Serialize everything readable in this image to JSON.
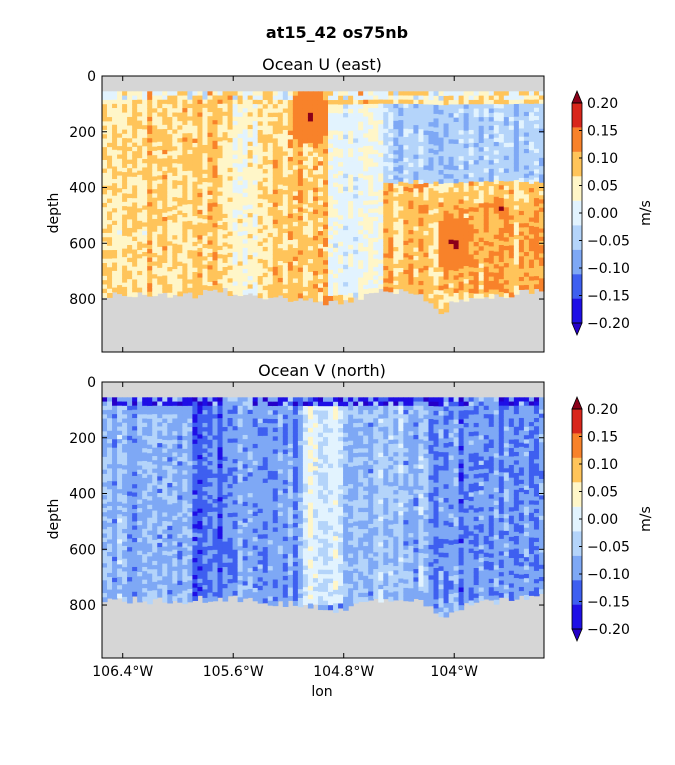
{
  "figure": {
    "title": "at15_42 os75nb"
  },
  "colors": {
    "levels": [
      -0.2,
      -0.15,
      -0.1,
      -0.05,
      0.0,
      0.05,
      0.1,
      0.15,
      0.2
    ],
    "bins": [
      "#1E0FE6",
      "#3E5FF0",
      "#7EA8F5",
      "#B4D4FA",
      "#E2F3FE",
      "#FFF6C8",
      "#FFC45A",
      "#F8822A",
      "#D9261B"
    ],
    "under": "#2400C8",
    "over": "#8B0019",
    "mask": "#d6d6d6",
    "highlight_u": "#7A0015"
  },
  "chart_data": [
    {
      "type": "heatmap",
      "title": "Ocean U (east)",
      "ylabel": "depth",
      "xlabel": "",
      "xlim": [
        -106.55,
        -103.35
      ],
      "ylim": [
        990,
        0
      ],
      "yticks": [
        0,
        200,
        400,
        600,
        800
      ],
      "xticks": [
        -106.4,
        -105.6,
        -104.8,
        -104.0
      ],
      "xtick_labels": [],
      "colorbar": {
        "label": "m/s",
        "ticks": [
          0.2,
          0.15,
          0.1,
          0.05,
          0.0,
          -0.05,
          -0.1,
          -0.15,
          -0.2
        ],
        "tick_labels": [
          "0.20",
          "0.15",
          "0.10",
          "0.05",
          "0.00",
          "−0.05",
          "−0.10",
          "−0.15",
          "−0.20"
        ]
      },
      "top_valid_depth": 55,
      "bottom_depth_profile": {
        "lon": [
          -106.55,
          -106.3,
          -106.0,
          -105.7,
          -105.4,
          -105.1,
          -104.9,
          -104.7,
          -104.5,
          -104.3,
          -104.2,
          -104.1,
          -104.0,
          -103.8,
          -103.6,
          -103.4
        ],
        "depth": [
          790,
          780,
          790,
          770,
          785,
          800,
          820,
          795,
          770,
          780,
          800,
          850,
          810,
          790,
          780,
          770
        ]
      },
      "regions": [
        {
          "lon": [
            -106.55,
            -105.7
          ],
          "depth": [
            100,
            780
          ],
          "value": 0.11
        },
        {
          "lon": [
            -105.7,
            -105.3
          ],
          "depth": [
            100,
            780
          ],
          "value": 0.07
        },
        {
          "lon": [
            -105.3,
            -104.9
          ],
          "depth": [
            100,
            800
          ],
          "value": 0.12
        },
        {
          "lon": [
            -104.9,
            -104.5
          ],
          "depth": [
            100,
            790
          ],
          "value": 0.03
        },
        {
          "lon": [
            -104.5,
            -104.1
          ],
          "depth": [
            380,
            800
          ],
          "value": 0.12
        },
        {
          "lon": [
            -104.1,
            -103.35
          ],
          "depth": [
            450,
            780
          ],
          "value": 0.14
        },
        {
          "lon": [
            -104.5,
            -103.35
          ],
          "depth": [
            100,
            380
          ],
          "value": -0.03
        }
      ],
      "extreme_highlights": [
        {
          "lon": -105.05,
          "depth": 150,
          "value": 0.21
        },
        {
          "lon": -104.0,
          "depth": 600,
          "value": 0.21
        }
      ]
    },
    {
      "type": "heatmap",
      "title": "Ocean V (north)",
      "ylabel": "depth",
      "xlabel": "lon",
      "xlim": [
        -106.55,
        -103.35
      ],
      "ylim": [
        990,
        0
      ],
      "yticks": [
        0,
        200,
        400,
        600,
        800
      ],
      "xticks": [
        -106.4,
        -105.6,
        -104.8,
        -104.0
      ],
      "xtick_labels": [
        "106.4°W",
        "105.6°W",
        "104.8°W",
        "104°W"
      ],
      "colorbar": {
        "label": "m/s",
        "ticks": [
          0.2,
          0.15,
          0.1,
          0.05,
          0.0,
          -0.05,
          -0.1,
          -0.15,
          -0.2
        ],
        "tick_labels": [
          "0.20",
          "0.15",
          "0.10",
          "0.05",
          "0.00",
          "−0.05",
          "−0.10",
          "−0.15",
          "−0.20"
        ]
      },
      "top_valid_depth": 55,
      "bottom_depth_profile": {
        "lon": [
          -106.55,
          -106.3,
          -106.0,
          -105.7,
          -105.4,
          -105.1,
          -104.9,
          -104.7,
          -104.5,
          -104.3,
          -104.2,
          -104.1,
          -104.0,
          -103.8,
          -103.6,
          -103.4
        ],
        "depth": [
          790,
          780,
          790,
          770,
          785,
          800,
          820,
          795,
          770,
          780,
          800,
          850,
          810,
          790,
          780,
          770
        ]
      },
      "regions": [
        {
          "lon": [
            -106.55,
            -105.9
          ],
          "depth": [
            80,
            780
          ],
          "value": -0.06
        },
        {
          "lon": [
            -105.9,
            -105.55
          ],
          "depth": [
            80,
            780
          ],
          "value": -0.11
        },
        {
          "lon": [
            -105.55,
            -105.1
          ],
          "depth": [
            80,
            780
          ],
          "value": -0.07
        },
        {
          "lon": [
            -105.1,
            -104.8
          ],
          "depth": [
            80,
            800
          ],
          "value": 0.03
        },
        {
          "lon": [
            -104.8,
            -104.2
          ],
          "depth": [
            80,
            790
          ],
          "value": -0.05
        },
        {
          "lon": [
            -104.2,
            -103.35
          ],
          "depth": [
            80,
            780
          ],
          "value": -0.09
        }
      ],
      "extreme_highlights": []
    }
  ]
}
